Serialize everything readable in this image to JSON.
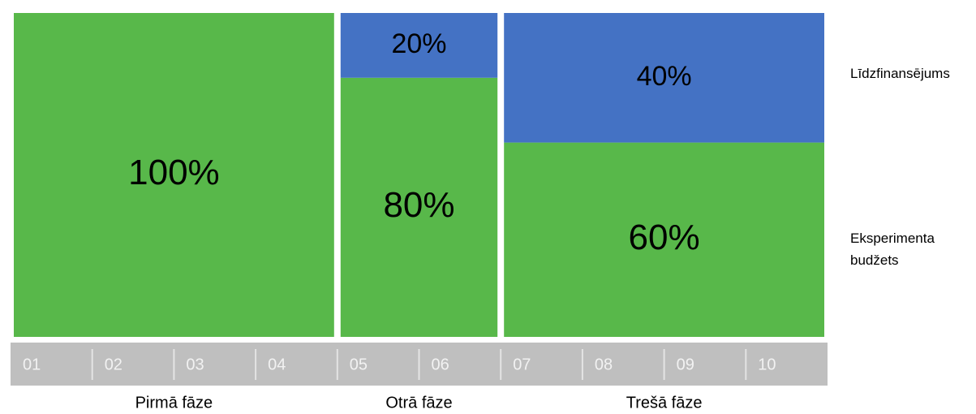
{
  "chart_data": {
    "type": "stacked-variable-bar",
    "categories": [
      "Pirmā fāze",
      "Otrā fāze",
      "Trešā fāze"
    ],
    "months": [
      [
        "01",
        "02",
        "03",
        "04"
      ],
      [
        "05",
        "06"
      ],
      [
        "07",
        "08",
        "09",
        "10"
      ]
    ],
    "ylim": [
      0,
      100
    ],
    "series": [
      {
        "name": "Eksperimenta budžets",
        "color": "#58b84a",
        "values": [
          100,
          80,
          60
        ],
        "value_labels": [
          "100%",
          "80%",
          "60%"
        ]
      },
      {
        "name": "Līdzfinansējums",
        "color": "#4472c4",
        "values": [
          0,
          20,
          40
        ],
        "value_labels": [
          null,
          "20%",
          "40%"
        ]
      }
    ]
  }
}
